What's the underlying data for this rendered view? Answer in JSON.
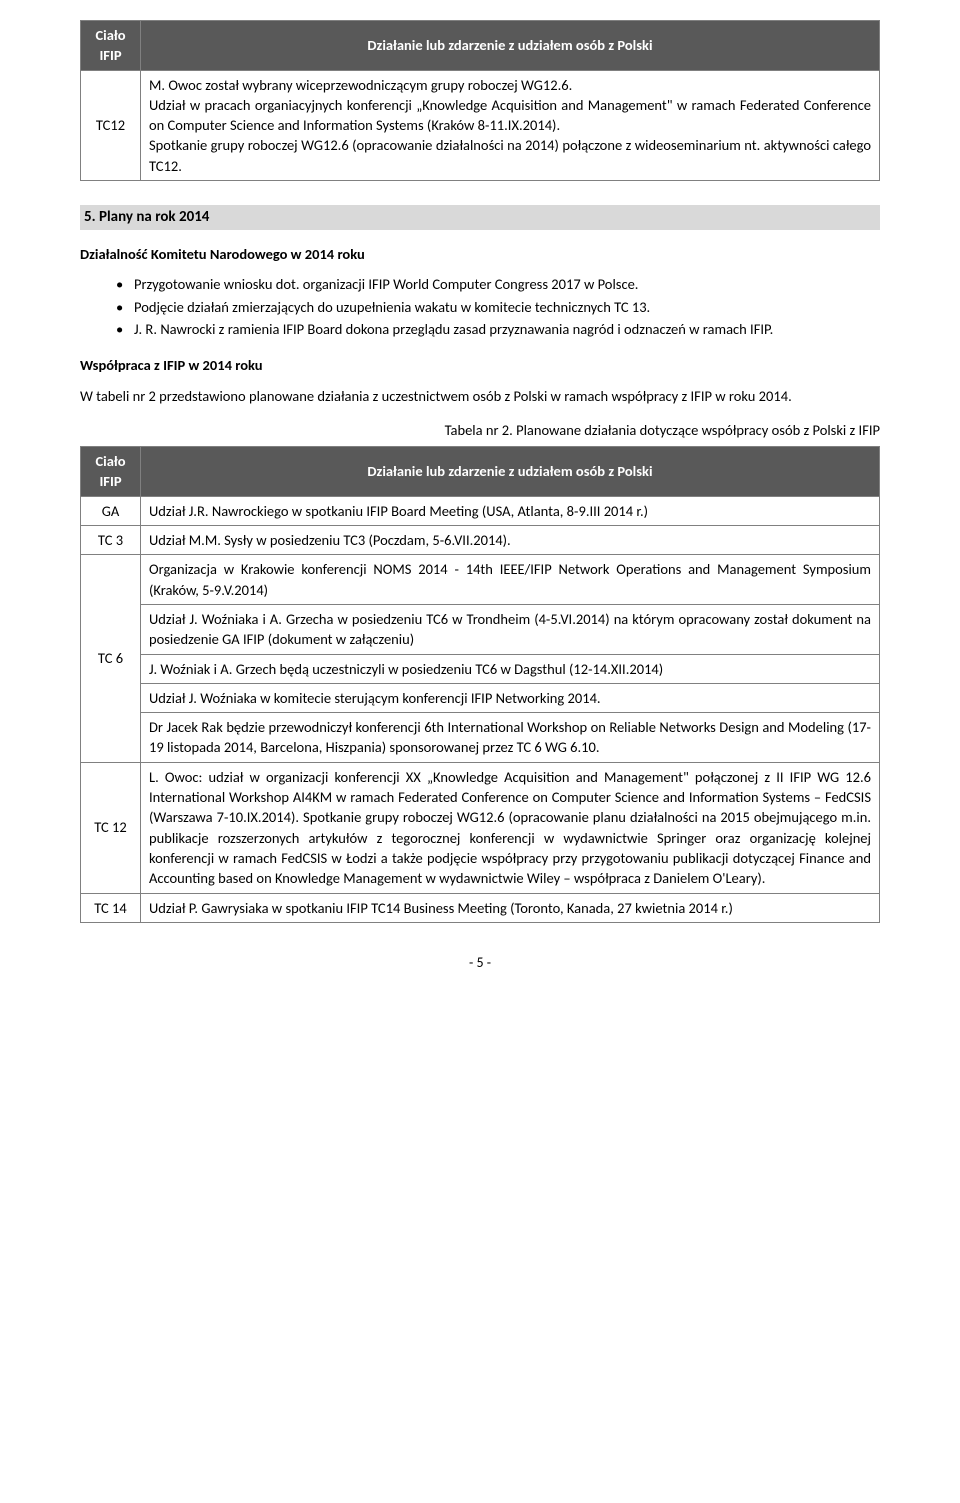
{
  "table1": {
    "headers": [
      "Ciało IFIP",
      "Działanie lub zdarzenie z udziałem osób z Polski"
    ],
    "row": {
      "label": "TC12",
      "content": "M. Owoc został wybrany wiceprzewodniczącym grupy roboczej WG12.6.\nUdział w pracach organiacyjnych konferencji „Knowledge Acquisition and Management\" w ramach Federated Conference on Computer Science and Information Systems (Kraków 8-11.IX.2014).\n Spotkanie grupy roboczej  WG12.6 (opracowanie działalności na 2014) połączone z wideoseminarium nt. aktywności  całego TC12."
    }
  },
  "section5": {
    "title": "5. Plany na rok 2014",
    "sub1": "Działalność Komitetu Narodowego w 2014 roku",
    "bullets": [
      "Przygotowanie wniosku dot. organizacji IFIP World Computer Congress 2017 w Polsce.",
      "Podjęcie działań zmierzających do uzupełnienia wakatu w komitecie technicznych TC 13.",
      "J. R. Nawrocki z ramienia IFIP Board dokona przeglądu zasad przyznawania nagród i odznaczeń w ramach IFIP."
    ],
    "sub2": "Współpraca z IFIP w 2014 roku",
    "para": "W tabeli nr 2 przedstawiono planowane działania z uczestnictwem osób z Polski w ramach współpracy z IFIP w roku 2014.",
    "caption": "Tabela nr 2. Planowane działania dotyczące współpracy osób z Polski z IFIP"
  },
  "table2": {
    "headers": [
      "Ciało IFIP",
      "Działanie lub zdarzenie z udziałem osób z Polski"
    ],
    "rows": [
      {
        "label": "GA",
        "blocks": [
          "Udział J.R. Nawrockiego w spotkaniu IFIP Board Meeting (USA, Atlanta, 8-9.III 2014 r.)"
        ]
      },
      {
        "label": "TC 3",
        "blocks": [
          "Udział M.M. Sysły w posiedzeniu TC3 (Poczdam, 5-6.VII.2014)."
        ]
      },
      {
        "label": "TC 6",
        "blocks": [
          "Organizacja w Krakowie konferencji NOMS 2014 - 14th IEEE/IFIP Network Operations and Management Symposium (Kraków, 5-9.V.2014)",
          "Udział J. Woźniaka i A. Grzecha w posiedzeniu TC6 w Trondheim (4-5.VI.2014) na którym opracowany został dokument na posiedzenie GA IFIP (dokument w załączeniu)",
          "J. Woźniak i A. Grzech będą uczestniczyli w posiedzeniu TC6 w Dagsthul (12-14.XII.2014)",
          "Udział J. Woźniaka w komitecie sterującym konferencji IFIP Networking 2014.",
          "Dr Jacek Rak będzie przewodniczył konferencji 6th International Workshop on Reliable Networks Design and Modeling (17-19 listopada 2014, Barcelona, Hiszpania) sponsorowanej przez TC 6 WG 6.10."
        ]
      },
      {
        "label": "TC 12",
        "blocks": [
          "L. Owoc: udział w organizacji konferencji XX „Knowledge Acquisition and Management\" połączonej z II IFIP WG 12.6 International Workshop AI4KM w ramach Federated Conference on Computer Science and Information Systems – FedCSIS (Warszawa 7-10.IX.2014).  Spotkanie grupy roboczej  WG12.6 (opracowanie planu działalności na 2015 obejmującego m.in. publikacje rozszerzonych artykułów z tegorocznej konferencji w wydawnictwie Springer oraz organizację kolejnej konferencji w ramach FedCSIS w Łodzi a także podjęcie współpracy przy przygotowaniu publikacji dotyczącej Finance and Accounting based on Knowledge Management w wydawnictwie Wiley – współpraca z Danielem O'Leary)."
        ]
      },
      {
        "label": "TC 14",
        "blocks": [
          "Udział P. Gawrysiaka w spotkaniu IFIP TC14 Business Meeting (Toronto, Kanada, 27 kwietnia 2014 r.)"
        ]
      }
    ]
  },
  "footer": "- 5 -"
}
